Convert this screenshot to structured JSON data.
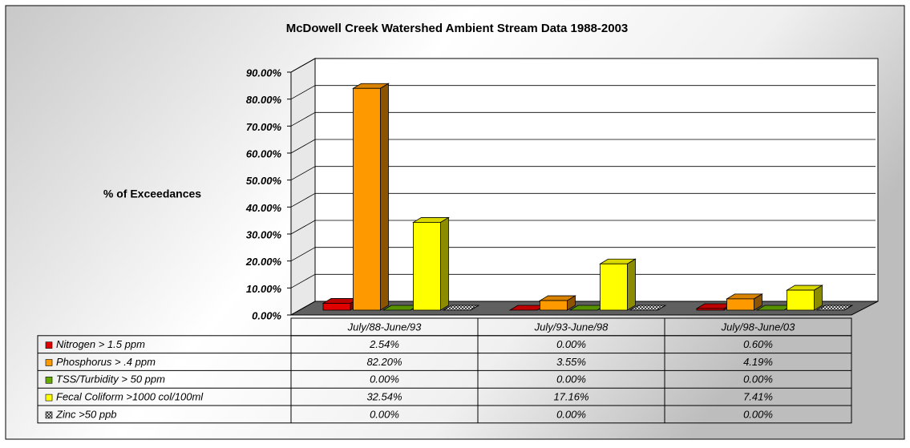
{
  "chart_data": {
    "type": "bar3d",
    "title": "McDowell Creek Watershed Ambient Stream Data 1988-2003",
    "y_label": "% of Exceedances",
    "categories": [
      "July/88-June/93",
      "July/93-June/98",
      "July/98-June/03"
    ],
    "series": [
      {
        "name": "Nitrogen > 1.5 ppm",
        "color": "#e00000",
        "values": [
          2.54,
          0.0,
          0.6
        ],
        "value_labels": [
          "2.54%",
          "0.00%",
          "0.60%"
        ]
      },
      {
        "name": "Phosphorus > .4 ppm",
        "color": "#ff9900",
        "values": [
          82.2,
          3.55,
          4.19
        ],
        "value_labels": [
          "82.20%",
          "3.55%",
          "4.19%"
        ]
      },
      {
        "name": "TSS/Turbidity > 50 ppm",
        "color": "#66aa00",
        "values": [
          0.0,
          0.0,
          0.0
        ],
        "value_labels": [
          "0.00%",
          "0.00%",
          "0.00%"
        ]
      },
      {
        "name": "Fecal Coliform >1000 col/100ml",
        "color": "#ffff00",
        "values": [
          32.54,
          17.16,
          7.41
        ],
        "value_labels": [
          "32.54%",
          "17.16%",
          "7.41%"
        ]
      },
      {
        "name": "Zinc >50 ppb",
        "color": "#808080",
        "values": [
          0.0,
          0.0,
          0.0
        ],
        "value_labels": [
          "0.00%",
          "0.00%",
          "0.00%"
        ]
      }
    ],
    "ylim": [
      0,
      90
    ],
    "yticks": [
      {
        "value": 0,
        "label": "0.00%"
      },
      {
        "value": 10,
        "label": "10.00%"
      },
      {
        "value": 20,
        "label": "20.00%"
      },
      {
        "value": 30,
        "label": "30.00%"
      },
      {
        "value": 40,
        "label": "40.00%"
      },
      {
        "value": 50,
        "label": "50.00%"
      },
      {
        "value": 60,
        "label": "60.00%"
      },
      {
        "value": 70,
        "label": "70.00%"
      },
      {
        "value": 80,
        "label": "80.00%"
      },
      {
        "value": 90,
        "label": "90.00%"
      }
    ],
    "grid": true
  }
}
